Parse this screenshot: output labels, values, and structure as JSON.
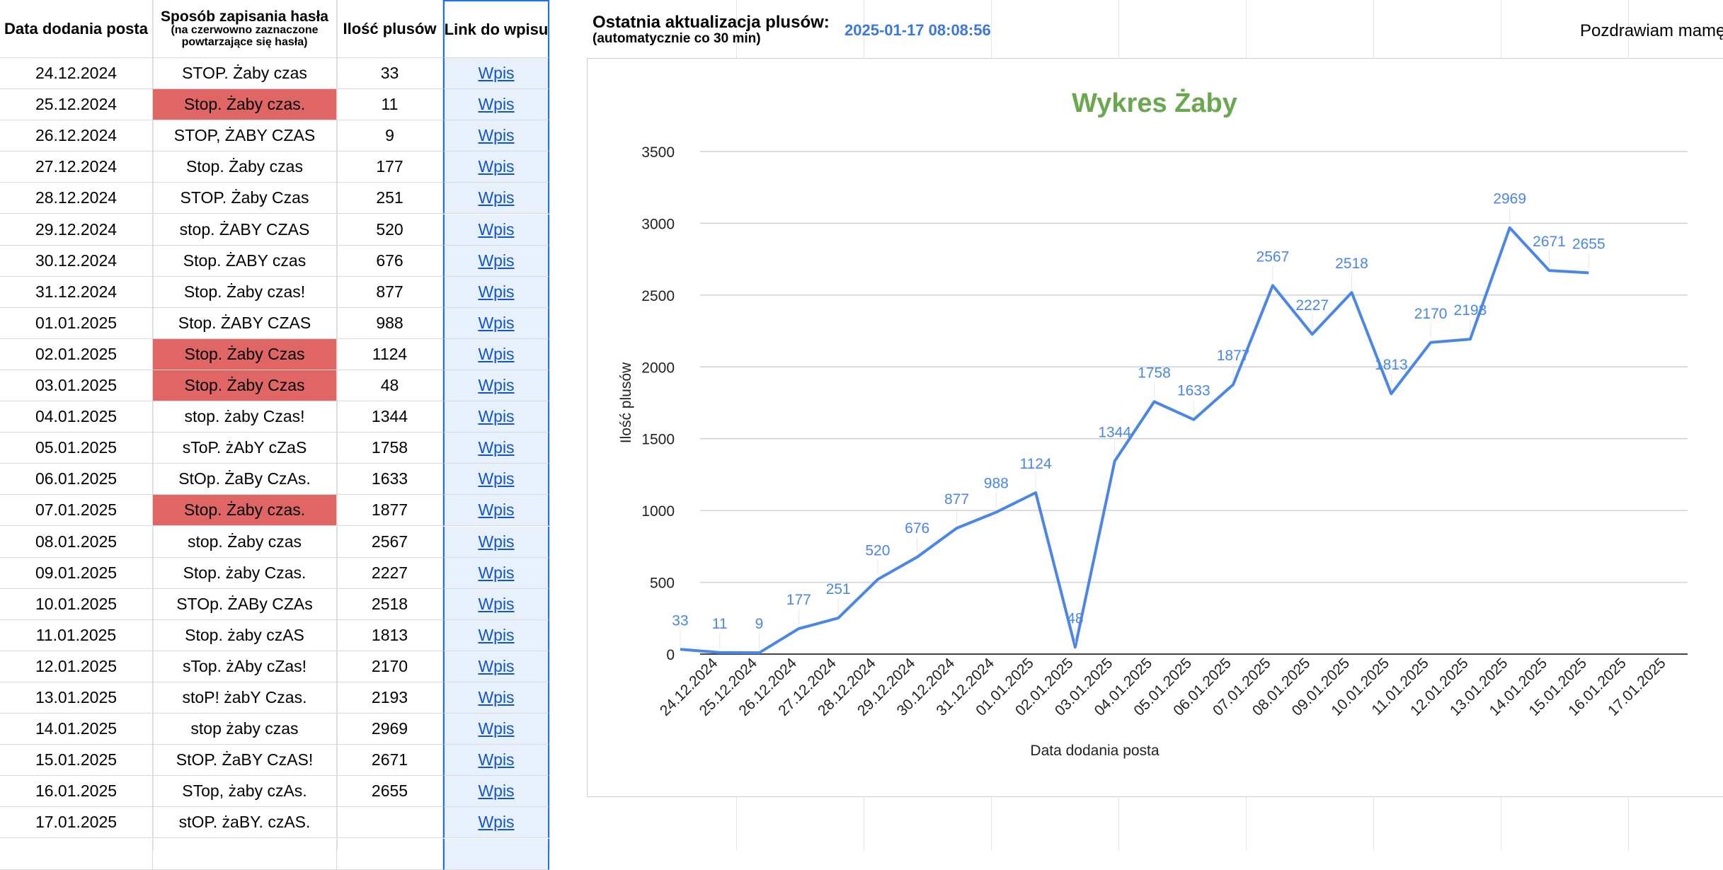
{
  "table": {
    "headers": {
      "date": "Data dodania posta",
      "method_title": "Sposób zapisania hasła",
      "method_note": "(na czerwowno zaznaczone powtarzające się hasła)",
      "plus": "Ilość plusów",
      "link": "Link do wpisu"
    },
    "rows": [
      {
        "date": "24.12.2024",
        "pass": "STOP. Żaby czas",
        "plus": "33",
        "link": "Wpis",
        "red": false
      },
      {
        "date": "25.12.2024",
        "pass": "Stop. Żaby czas.",
        "plus": "11",
        "link": "Wpis",
        "red": true
      },
      {
        "date": "26.12.2024",
        "pass": "STOP, ŻABY CZAS",
        "plus": "9",
        "link": "Wpis",
        "red": false
      },
      {
        "date": "27.12.2024",
        "pass": "Stop. Żaby czas",
        "plus": "177",
        "link": "Wpis",
        "red": false
      },
      {
        "date": "28.12.2024",
        "pass": "STOP. Żaby Czas",
        "plus": "251",
        "link": "Wpis",
        "red": false
      },
      {
        "date": "29.12.2024",
        "pass": "stop. ŻABY CZAS",
        "plus": "520",
        "link": "Wpis",
        "red": false
      },
      {
        "date": "30.12.2024",
        "pass": "Stop. ŻABY czas",
        "plus": "676",
        "link": "Wpis",
        "red": false
      },
      {
        "date": "31.12.2024",
        "pass": "Stop. Żaby czas!",
        "plus": "877",
        "link": "Wpis",
        "red": false
      },
      {
        "date": "01.01.2025",
        "pass": "Stop. ŻABY CZAS",
        "plus": "988",
        "link": "Wpis",
        "red": false
      },
      {
        "date": "02.01.2025",
        "pass": "Stop. Żaby Czas",
        "plus": "1124",
        "link": "Wpis",
        "red": true
      },
      {
        "date": "03.01.2025",
        "pass": "Stop. Żaby Czas",
        "plus": "48",
        "link": "Wpis",
        "red": true
      },
      {
        "date": "04.01.2025",
        "pass": "stop. żaby Czas!",
        "plus": "1344",
        "link": "Wpis",
        "red": false
      },
      {
        "date": "05.01.2025",
        "pass": "sToP. żAbY cZaS",
        "plus": "1758",
        "link": "Wpis",
        "red": false
      },
      {
        "date": "06.01.2025",
        "pass": "StOp. ŻaBy CzAs.",
        "plus": "1633",
        "link": "Wpis",
        "red": false
      },
      {
        "date": "07.01.2025",
        "pass": "Stop. Żaby czas.",
        "plus": "1877",
        "link": "Wpis",
        "red": true
      },
      {
        "date": "08.01.2025",
        "pass": "stop. Żaby czas",
        "plus": "2567",
        "link": "Wpis",
        "red": false
      },
      {
        "date": "09.01.2025",
        "pass": "Stop. żaby Czas.",
        "plus": "2227",
        "link": "Wpis",
        "red": false
      },
      {
        "date": "10.01.2025",
        "pass": "STOp. ŻABy CZAs",
        "plus": "2518",
        "link": "Wpis",
        "red": false
      },
      {
        "date": "11.01.2025",
        "pass": "Stop. żaby czAS",
        "plus": "1813",
        "link": "Wpis",
        "red": false
      },
      {
        "date": "12.01.2025",
        "pass": "sTop. żAby cZas!",
        "plus": "2170",
        "link": "Wpis",
        "red": false
      },
      {
        "date": "13.01.2025",
        "pass": "stoP! żabY Czas.",
        "plus": "2193",
        "link": "Wpis",
        "red": false
      },
      {
        "date": "14.01.2025",
        "pass": "stop żaby czas",
        "plus": "2969",
        "link": "Wpis",
        "red": false
      },
      {
        "date": "15.01.2025",
        "pass": "StOP. ŻaBY CzAS!",
        "plus": "2671",
        "link": "Wpis",
        "red": false
      },
      {
        "date": "16.01.2025",
        "pass": "STop, żaby czAs.",
        "plus": "2655",
        "link": "Wpis",
        "red": false
      },
      {
        "date": "17.01.2025",
        "pass": "stOP. żaBY. czAS.",
        "plus": "",
        "link": "Wpis",
        "red": false
      }
    ]
  },
  "update": {
    "title": "Ostatnia aktualizacja plusów:",
    "subtitle": "(automatycznie co 30 min)",
    "timestamp": "2025-01-17 08:08:56"
  },
  "greeting": "Pozdrawiam mamę",
  "colors": {
    "red_highlight": "#e06666",
    "series": "#4a86e8",
    "title": "#6aa84f",
    "link": "#1155cc"
  },
  "chart_data": {
    "type": "line",
    "title": "Wykres Żaby",
    "xlabel": "Data dodania posta",
    "ylabel": "Ilość plusów",
    "ylim": [
      0,
      3500
    ],
    "yticks": [
      0,
      500,
      1000,
      1500,
      2000,
      2500,
      3000,
      3500
    ],
    "grid": true,
    "categories": [
      "24.12.2024",
      "25.12.2024",
      "26.12.2024",
      "27.12.2024",
      "28.12.2024",
      "29.12.2024",
      "30.12.2024",
      "31.12.2024",
      "01.01.2025",
      "02.01.2025",
      "03.01.2025",
      "04.01.2025",
      "05.01.2025",
      "06.01.2025",
      "07.01.2025",
      "08.01.2025",
      "09.01.2025",
      "10.01.2025",
      "11.01.2025",
      "12.01.2025",
      "13.01.2025",
      "14.01.2025",
      "15.01.2025",
      "16.01.2025",
      "17.01.2025"
    ],
    "values": [
      33,
      11,
      9,
      177,
      251,
      520,
      676,
      877,
      988,
      1124,
      48,
      1344,
      1758,
      1633,
      1877,
      2567,
      2227,
      2518,
      1813,
      2170,
      2193,
      2969,
      2671,
      2655,
      null
    ]
  }
}
